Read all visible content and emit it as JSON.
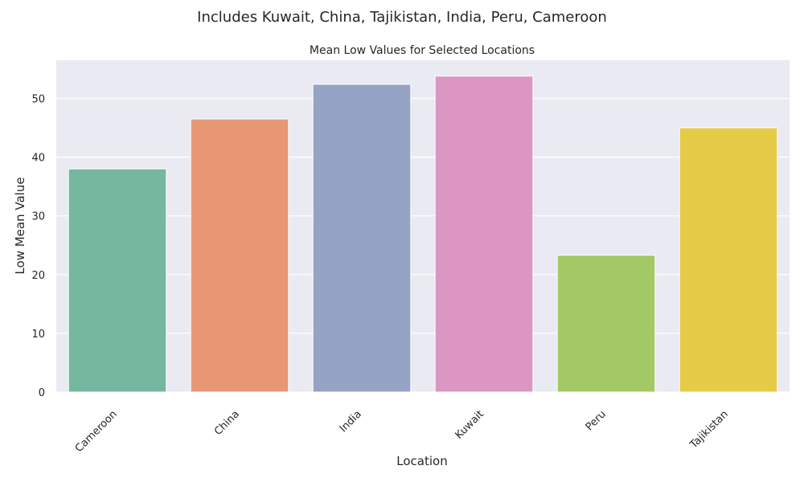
{
  "suptitle": "Includes Kuwait, China, Tajikistan, India, Peru, Cameroon",
  "chart_data": {
    "type": "bar",
    "title": "Mean Low Values for Selected Locations",
    "xlabel": "Location",
    "ylabel": "Low Mean Value",
    "categories": [
      "Cameroon",
      "China",
      "India",
      "Kuwait",
      "Peru",
      "Tajikistan"
    ],
    "values": [
      38.0,
      46.5,
      52.4,
      53.8,
      23.3,
      45.0
    ],
    "ylim": [
      0,
      56.5
    ],
    "yticks": [
      0,
      10,
      20,
      30,
      40,
      50
    ],
    "grid": true,
    "legend": "none",
    "colors": [
      "#76b7a0",
      "#e89774",
      "#95a4c4",
      "#db96c1",
      "#a3c866",
      "#e6cb49"
    ],
    "plot_background": "#eaeaf2"
  }
}
